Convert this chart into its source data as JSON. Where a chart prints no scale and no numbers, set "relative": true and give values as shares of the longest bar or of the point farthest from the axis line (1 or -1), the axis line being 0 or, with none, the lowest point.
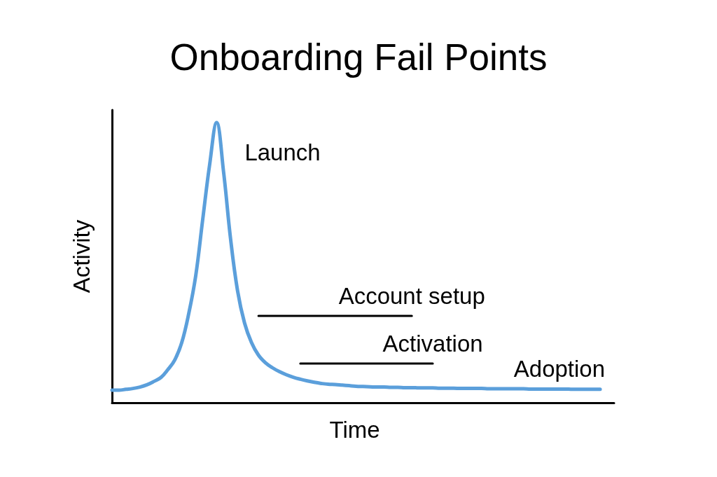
{
  "chart_data": {
    "type": "line",
    "title": "Onboarding Fail Points",
    "xlabel": "Time",
    "ylabel": "Activity",
    "relative": true,
    "marker": "none",
    "line_style": "solid",
    "annotations": [
      "Launch",
      "Adoption"
    ],
    "categories": [
      null,
      null,
      null,
      null,
      null,
      null,
      null,
      null,
      null,
      null,
      null,
      null,
      null,
      null,
      null,
      null,
      null,
      null,
      null,
      null,
      null,
      null,
      null,
      null,
      null,
      null,
      null,
      null,
      null,
      null,
      null,
      null,
      null,
      null,
      null,
      null,
      null,
      null,
      null,
      null,
      null,
      null,
      null,
      null,
      null,
      null,
      null,
      null,
      null,
      null,
      null,
      null,
      null,
      null,
      null,
      null,
      null,
      null,
      null,
      null,
      null,
      null,
      null,
      null,
      null,
      null,
      null,
      null,
      null,
      null,
      null,
      null,
      null
    ],
    "series": [
      {
        "color": "#5b9fdb",
        "values": [
          0.045,
          0.045,
          0.048,
          0.051,
          0.056,
          0.064,
          0.076,
          0.09,
          0.118,
          0.153,
          0.215,
          0.318,
          0.453,
          0.653,
          0.85,
          1,
          0.823,
          0.585,
          0.4,
          0.285,
          0.215,
          0.17,
          0.143,
          0.125,
          0.111,
          0.1,
          0.091,
          0.084,
          0.078,
          0.073,
          0.069,
          0.066,
          0.065,
          0.063,
          0.061,
          0.059,
          0.058,
          0.057,
          0.056,
          0.056,
          0.055,
          0.055,
          0.054,
          0.054,
          0.053,
          0.053,
          0.053,
          0.052,
          0.052,
          0.052,
          0.051,
          0.051,
          0.051,
          0.051,
          0.05,
          0.05,
          0.05,
          0.05,
          0.05,
          0.05,
          0.049,
          0.049,
          0.049,
          0.049,
          0.049,
          0.049,
          0.048,
          0.048,
          0.048,
          0.048,
          0.048,
          null,
          null
        ]
      },
      {
        "name": "Account setup",
        "color": "#000000",
        "values": [
          null,
          null,
          null,
          null,
          null,
          null,
          null,
          null,
          null,
          null,
          null,
          null,
          null,
          null,
          null,
          null,
          null,
          null,
          null,
          null,
          null,
          0.31,
          0.31,
          0.31,
          0.31,
          0.31,
          0.31,
          0.31,
          0.31,
          0.31,
          0.31,
          0.31,
          0.31,
          0.31,
          0.31,
          0.31,
          0.31,
          0.31,
          0.31,
          0.31,
          0.31,
          0.31,
          0.31,
          0.31,
          null,
          null,
          null,
          null,
          null,
          null,
          null,
          null,
          null,
          null,
          null,
          null,
          null,
          null,
          null,
          null,
          null,
          null,
          null,
          null,
          null,
          null,
          null,
          null,
          null,
          null,
          null,
          null,
          null
        ]
      },
      {
        "name": "Activation",
        "color": "#000000",
        "values": [
          null,
          null,
          null,
          null,
          null,
          null,
          null,
          null,
          null,
          null,
          null,
          null,
          null,
          null,
          null,
          null,
          null,
          null,
          null,
          null,
          null,
          null,
          null,
          null,
          null,
          null,
          null,
          0.14,
          0.14,
          0.14,
          0.14,
          0.14,
          0.14,
          0.14,
          0.14,
          0.14,
          0.14,
          0.14,
          0.14,
          0.14,
          0.14,
          0.14,
          0.14,
          0.14,
          0.14,
          0.14,
          0.14,
          null,
          null,
          null,
          null,
          null,
          null,
          null,
          null,
          null,
          null,
          null,
          null,
          null,
          null,
          null,
          null,
          null,
          null,
          null,
          null,
          null,
          null,
          null,
          null,
          null,
          null
        ]
      }
    ]
  }
}
